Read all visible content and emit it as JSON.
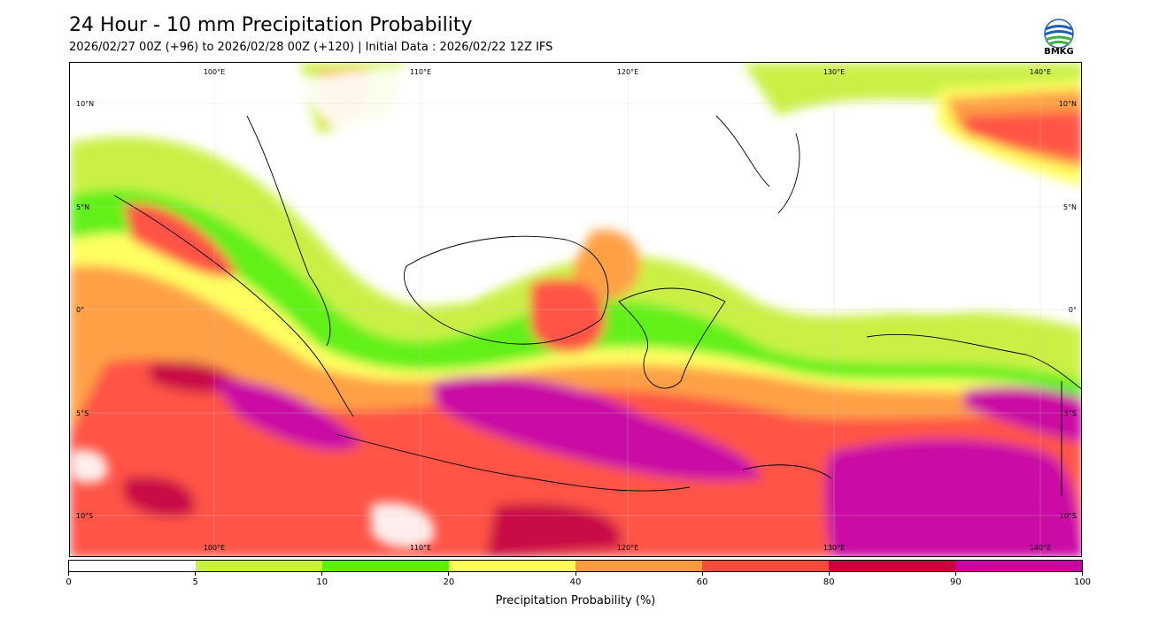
{
  "header": {
    "title": "24 Hour - 10 mm Precipitation Probability",
    "subtitle": "2026/02/27 00Z (+96) to 2026/02/28 00Z (+120) | Initial Data : 2026/02/22 12Z IFS"
  },
  "logo": {
    "text": "BMKG",
    "icon": "bmkg-logo-icon"
  },
  "map": {
    "lon_labels": [
      "100°E",
      "110°E",
      "120°E",
      "130°E",
      "140°E"
    ],
    "lat_labels": [
      "10°N",
      "5°N",
      "0°",
      "5°S",
      "10°S"
    ]
  },
  "legend": {
    "title": "Precipitation Probability (%)",
    "ticks": [
      "0",
      "5",
      "10",
      "20",
      "40",
      "60",
      "80",
      "90",
      "100"
    ],
    "colors": [
      "#ffffff",
      "#c8f03c",
      "#5af00a",
      "#ffff5a",
      "#ff9b3c",
      "#ff4b3c",
      "#c8003c",
      "#c800a0"
    ]
  }
}
